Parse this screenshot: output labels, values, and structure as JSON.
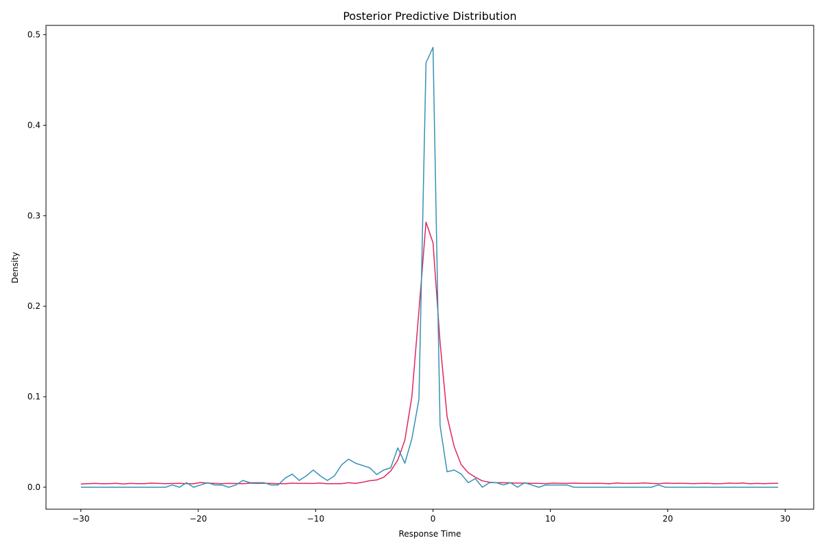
{
  "chart_data": {
    "type": "line",
    "title": "Posterior Predictive Distribution",
    "xlabel": "Response Time",
    "ylabel": "Density",
    "xlim": [
      -32.97,
      32.43
    ],
    "ylim": [
      -0.0243,
      0.5103
    ],
    "x_ticks": [
      -30,
      -20,
      -10,
      0,
      10,
      20,
      30
    ],
    "x_tick_labels": [
      "−30",
      "−20",
      "−10",
      "0",
      "10",
      "20",
      "30"
    ],
    "y_ticks": [
      0.0,
      0.1,
      0.2,
      0.3,
      0.4,
      0.5
    ],
    "y_tick_labels": [
      "0.0",
      "0.1",
      "0.2",
      "0.3",
      "0.4",
      "0.5"
    ],
    "grid": false,
    "series": [
      {
        "color": "#e0255b",
        "x": [
          -30,
          -29.4,
          -28.8,
          -28.2,
          -27.6,
          -27.0,
          -26.4,
          -25.8,
          -25.2,
          -24.6,
          -24.0,
          -23.4,
          -22.8,
          -22.2,
          -21.6,
          -21.0,
          -20.4,
          -19.8,
          -19.2,
          -18.6,
          -18.0,
          -17.4,
          -16.8,
          -16.2,
          -15.6,
          -15.0,
          -14.4,
          -13.8,
          -13.2,
          -12.6,
          -12.0,
          -11.4,
          -10.8,
          -10.2,
          -9.6,
          -9.0,
          -8.4,
          -7.8,
          -7.2,
          -6.6,
          -6.0,
          -5.4,
          -4.8,
          -4.2,
          -3.6,
          -3.0,
          -2.4,
          -1.8,
          -1.2,
          -0.6,
          0.0,
          0.6,
          1.2,
          1.8,
          2.4,
          3.0,
          3.6,
          4.2,
          4.8,
          5.4,
          6.0,
          6.6,
          7.2,
          7.8,
          8.4,
          9.0,
          9.6,
          10.2,
          10.8,
          11.4,
          12.0,
          12.6,
          13.2,
          13.8,
          14.4,
          15.0,
          15.6,
          16.2,
          16.8,
          17.4,
          18.0,
          18.6,
          19.2,
          19.8,
          20.4,
          21.0,
          21.6,
          22.2,
          22.8,
          23.4,
          24.0,
          24.6,
          25.2,
          25.8,
          26.4,
          27.0,
          27.6,
          28.2,
          28.8,
          29.4
        ],
        "y": [
          0.0035,
          0.004,
          0.0042,
          0.0038,
          0.004,
          0.0043,
          0.0035,
          0.0042,
          0.0039,
          0.004,
          0.0045,
          0.0042,
          0.004,
          0.0041,
          0.0043,
          0.004,
          0.0038,
          0.0052,
          0.0045,
          0.0042,
          0.004,
          0.0042,
          0.0041,
          0.0038,
          0.0045,
          0.0042,
          0.0044,
          0.0042,
          0.004,
          0.0038,
          0.0045,
          0.0042,
          0.0042,
          0.0041,
          0.0046,
          0.0038,
          0.004,
          0.004,
          0.005,
          0.0042,
          0.0055,
          0.0072,
          0.008,
          0.011,
          0.018,
          0.03,
          0.052,
          0.1,
          0.195,
          0.293,
          0.27,
          0.16,
          0.078,
          0.045,
          0.025,
          0.016,
          0.011,
          0.007,
          0.0055,
          0.005,
          0.005,
          0.0048,
          0.0045,
          0.0045,
          0.0043,
          0.0042,
          0.004,
          0.0045,
          0.0043,
          0.0042,
          0.0045,
          0.0043,
          0.0042,
          0.0044,
          0.0042,
          0.0038,
          0.0046,
          0.0043,
          0.0042,
          0.0044,
          0.0047,
          0.0042,
          0.0038,
          0.0045,
          0.0042,
          0.0043,
          0.0042,
          0.004,
          0.0042,
          0.0043,
          0.0038,
          0.004,
          0.0045,
          0.0042,
          0.0046,
          0.0038,
          0.0042,
          0.004,
          0.0042,
          0.0043
        ]
      },
      {
        "color": "#3291b6",
        "x": [
          -30,
          -29.4,
          -28.8,
          -28.2,
          -27.6,
          -27.0,
          -26.4,
          -25.8,
          -25.2,
          -24.6,
          -24.0,
          -23.4,
          -22.8,
          -22.2,
          -21.6,
          -21.0,
          -20.4,
          -19.8,
          -19.2,
          -18.6,
          -18.0,
          -17.4,
          -16.8,
          -16.2,
          -15.6,
          -15.0,
          -14.4,
          -13.8,
          -13.2,
          -12.6,
          -12.0,
          -11.4,
          -10.8,
          -10.2,
          -9.6,
          -9.0,
          -8.4,
          -7.8,
          -7.2,
          -6.6,
          -6.0,
          -5.4,
          -4.8,
          -4.2,
          -3.6,
          -3.0,
          -2.4,
          -1.8,
          -1.2,
          -0.6,
          0.0,
          0.6,
          1.2,
          1.8,
          2.4,
          3.0,
          3.6,
          4.2,
          4.8,
          5.4,
          6.0,
          6.6,
          7.2,
          7.8,
          8.4,
          9.0,
          9.6,
          10.2,
          10.8,
          11.4,
          12.0,
          12.6,
          13.2,
          13.8,
          14.4,
          15.0,
          15.6,
          16.2,
          16.8,
          17.4,
          18.0,
          18.6,
          19.2,
          19.8,
          20.4,
          21.0,
          21.6,
          22.2,
          22.8,
          23.4,
          24.0,
          24.6,
          25.2,
          25.8,
          26.4,
          27.0,
          27.6,
          28.2,
          28.8,
          29.4
        ],
        "y": [
          0.0,
          0.0,
          0.0,
          0.0,
          0.0,
          0.0,
          0.0,
          0.0,
          0.0,
          0.0,
          0.0,
          0.0,
          0.0,
          0.0025,
          0.0,
          0.005,
          0.0,
          0.0025,
          0.005,
          0.0025,
          0.0025,
          0.0,
          0.0025,
          0.0075,
          0.005,
          0.005,
          0.005,
          0.0025,
          0.0025,
          0.01,
          0.0145,
          0.0075,
          0.0125,
          0.019,
          0.0125,
          0.0075,
          0.0125,
          0.0245,
          0.031,
          0.0265,
          0.024,
          0.0215,
          0.014,
          0.019,
          0.0215,
          0.0435,
          0.0265,
          0.0535,
          0.097,
          0.469,
          0.486,
          0.068,
          0.017,
          0.019,
          0.0145,
          0.005,
          0.0095,
          0.0,
          0.005,
          0.005,
          0.0025,
          0.005,
          0.0,
          0.005,
          0.0025,
          0.0,
          0.0025,
          0.0025,
          0.0025,
          0.0025,
          0.0,
          0.0,
          0.0,
          0.0,
          0.0,
          0.0,
          0.0,
          0.0,
          0.0,
          0.0,
          0.0,
          0.0,
          0.0025,
          0.0,
          0.0,
          0.0,
          0.0,
          0.0,
          0.0,
          0.0,
          0.0,
          0.0,
          0.0,
          0.0,
          0.0,
          0.0,
          0.0,
          0.0,
          0.0,
          0.0
        ]
      }
    ]
  }
}
